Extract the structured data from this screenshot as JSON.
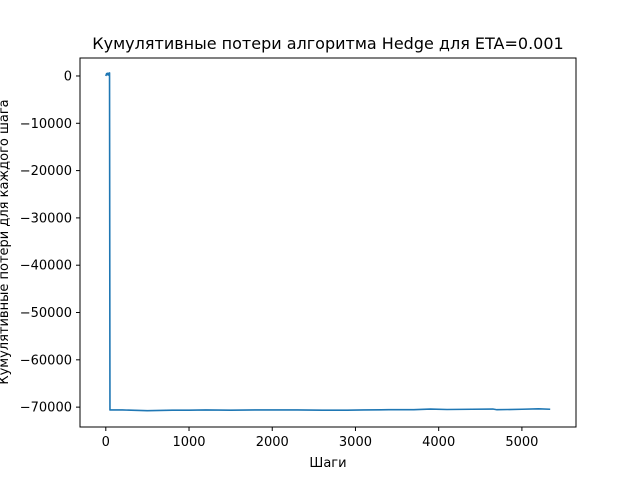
{
  "chart_data": {
    "type": "line",
    "title": "Кумулятивные потери алгоритма Hedge для ETA=0.001",
    "xlabel": "Шаги",
    "ylabel": "Кумулятивные потери для каждого шага",
    "xlim": [
      -310,
      5650
    ],
    "ylim": [
      -74200,
      3800
    ],
    "xticks": [
      0,
      1000,
      2000,
      3000,
      4000,
      5000
    ],
    "yticks": [
      0,
      -10000,
      -20000,
      -30000,
      -40000,
      -50000,
      -60000,
      -70000
    ],
    "grid": false,
    "legend": "none",
    "colors": {
      "line": "#1f77b4"
    },
    "series": [
      {
        "x": [
          0,
          10,
          20,
          25,
          30,
          35,
          40,
          45,
          50,
          200,
          500,
          800,
          1000,
          1200,
          1500,
          1800,
          2000,
          2300,
          2600,
          2900,
          3100,
          3400,
          3700,
          3900,
          4100,
          4400,
          4650,
          4700,
          5000,
          5200,
          5340
        ],
        "y": [
          0,
          500,
          300,
          600,
          200,
          500,
          400,
          650,
          -70600,
          -70600,
          -70750,
          -70650,
          -70650,
          -70600,
          -70650,
          -70600,
          -70600,
          -70600,
          -70650,
          -70650,
          -70600,
          -70550,
          -70550,
          -70400,
          -70500,
          -70450,
          -70400,
          -70550,
          -70450,
          -70350,
          -70450
        ]
      }
    ]
  }
}
